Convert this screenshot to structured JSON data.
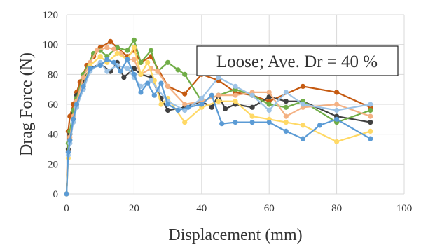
{
  "chart_data": {
    "type": "line",
    "xlabel": "Displacement (mm)",
    "ylabel": "Drag Force (N)",
    "xlim": [
      0,
      100
    ],
    "ylim": [
      0,
      120
    ],
    "xticks": [
      "0",
      "20",
      "40",
      "60",
      "80",
      "100"
    ],
    "yticks": [
      "0",
      "20",
      "40",
      "60",
      "80",
      "100",
      "120"
    ],
    "grid": true,
    "annotation": "Loose; Ave. Dr = 40 %",
    "series": [
      {
        "color": "#c55a11",
        "x": [
          0,
          0.5,
          1,
          2,
          3,
          4,
          6,
          8,
          10,
          13,
          15,
          18,
          20,
          22,
          25,
          30,
          35,
          40,
          45,
          50,
          55,
          60,
          70,
          80,
          90
        ],
        "y": [
          0,
          42,
          52,
          60,
          68,
          75,
          86,
          92,
          98,
          102,
          98,
          92,
          96,
          88,
          92,
          72,
          67,
          80,
          76,
          68,
          66,
          62,
          72,
          68,
          58
        ]
      },
      {
        "color": "#404040",
        "x": [
          0,
          0.5,
          1,
          2,
          3,
          5,
          7,
          10,
          13,
          15,
          17,
          20,
          22,
          25,
          28,
          30,
          35,
          40,
          43,
          45,
          47,
          50,
          55,
          60,
          65,
          70,
          80,
          90
        ],
        "y": [
          0,
          30,
          40,
          54,
          66,
          76,
          84,
          87,
          82,
          88,
          78,
          84,
          80,
          78,
          64,
          56,
          58,
          62,
          58,
          66,
          57,
          60,
          58,
          65,
          62,
          62,
          52,
          48
        ]
      },
      {
        "color": "#70ad47",
        "x": [
          0,
          0.5,
          1,
          2,
          3,
          5,
          8,
          10,
          12,
          15,
          18,
          20,
          22,
          25,
          27,
          30,
          33,
          35,
          40,
          45,
          50,
          55,
          60,
          65,
          70,
          80,
          90
        ],
        "y": [
          0,
          34,
          42,
          56,
          64,
          80,
          94,
          96,
          92,
          98,
          96,
          103,
          88,
          96,
          82,
          88,
          83,
          80,
          62,
          66,
          70,
          66,
          60,
          58,
          62,
          48,
          56
        ]
      },
      {
        "color": "#f4b183",
        "x": [
          0,
          0.5,
          1,
          2,
          3,
          5,
          7,
          9,
          12,
          14,
          16,
          18,
          20,
          22,
          25,
          27,
          30,
          35,
          40,
          45,
          50,
          55,
          60,
          65,
          70,
          80,
          90
        ],
        "y": [
          0,
          28,
          38,
          52,
          62,
          78,
          88,
          96,
          98,
          97,
          94,
          90,
          90,
          80,
          84,
          82,
          72,
          60,
          62,
          66,
          66,
          68,
          68,
          52,
          58,
          60,
          52
        ]
      },
      {
        "color": "#ffd966",
        "x": [
          0,
          0.5,
          1,
          2,
          3,
          5,
          7,
          10,
          12,
          15,
          18,
          20,
          22,
          24,
          26,
          28,
          30,
          35,
          40,
          45,
          50,
          55,
          60,
          65,
          70,
          80,
          90
        ],
        "y": [
          0,
          24,
          36,
          50,
          60,
          72,
          86,
          92,
          88,
          94,
          90,
          98,
          80,
          88,
          76,
          60,
          64,
          48,
          58,
          62,
          62,
          52,
          50,
          48,
          46,
          35,
          42
        ]
      },
      {
        "color": "#9dc3e6",
        "x": [
          0,
          0.5,
          1,
          2,
          3,
          5,
          7,
          10,
          12,
          15,
          18,
          20,
          22,
          25,
          27,
          30,
          35,
          40,
          45,
          50,
          55,
          60,
          65,
          70,
          80,
          90
        ],
        "y": [
          0,
          26,
          34,
          48,
          58,
          70,
          82,
          88,
          82,
          86,
          84,
          78,
          72,
          76,
          70,
          62,
          56,
          64,
          78,
          72,
          66,
          56,
          68,
          60,
          56,
          60
        ]
      },
      {
        "color": "#5b9bd5",
        "x": [
          0,
          0.5,
          1,
          2,
          3,
          5,
          7,
          10,
          12,
          14,
          16,
          18,
          20,
          22,
          24,
          26,
          28,
          30,
          33,
          36,
          40,
          43,
          46,
          50,
          55,
          60,
          65,
          70,
          75,
          80,
          90
        ],
        "y": [
          0,
          28,
          36,
          50,
          60,
          72,
          84,
          86,
          90,
          88,
          82,
          90,
          80,
          68,
          74,
          66,
          74,
          60,
          56,
          58,
          60,
          66,
          47,
          48,
          48,
          48,
          42,
          37,
          46,
          50,
          37
        ]
      }
    ]
  }
}
